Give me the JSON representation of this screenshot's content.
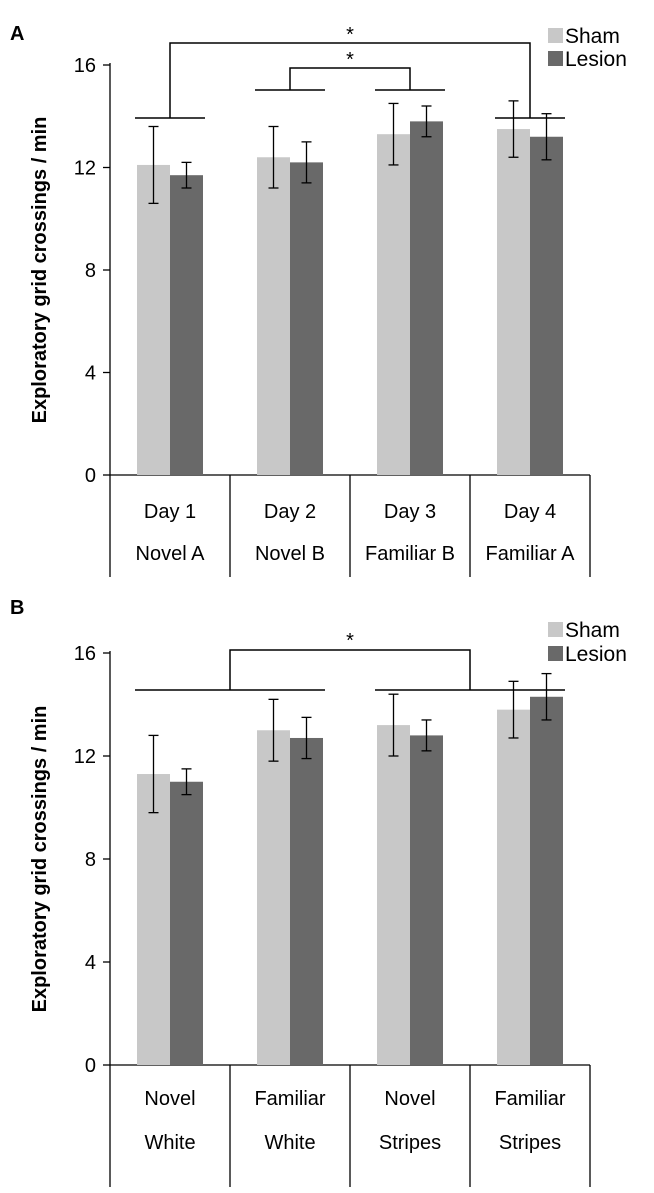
{
  "figure": {
    "background": "#ffffff"
  },
  "chart_data": [
    {
      "panel_label": "A",
      "type": "bar",
      "ylabel": "Exploratory grid crossings / min",
      "ylim": [
        0,
        16
      ],
      "yticks": [
        0,
        4,
        8,
        12,
        16
      ],
      "grid": false,
      "legend_position": "top-right",
      "categories": [
        [
          "Day 1",
          "Novel A"
        ],
        [
          "Day 2",
          "Novel B"
        ],
        [
          "Day 3",
          "Familiar B"
        ],
        [
          "Day 4",
          "Familiar A"
        ]
      ],
      "series": [
        {
          "name": "Sham",
          "color": "#c8c8c8",
          "values": [
            12.1,
            12.4,
            13.3,
            13.5
          ],
          "errors": [
            1.5,
            1.2,
            1.2,
            1.1
          ]
        },
        {
          "name": "Lesion",
          "color": "#696969",
          "values": [
            11.7,
            12.2,
            13.8,
            13.2
          ],
          "errors": [
            0.5,
            0.8,
            0.6,
            0.9
          ]
        }
      ],
      "annotations": [
        {
          "text": "*",
          "type": "significance",
          "left_groups": [
            0
          ],
          "right_groups": [
            3
          ]
        },
        {
          "text": "*",
          "type": "significance",
          "left_groups": [
            1
          ],
          "right_groups": [
            2
          ]
        }
      ]
    },
    {
      "panel_label": "B",
      "type": "bar",
      "ylabel": "Exploratory grid crossings / min",
      "ylim": [
        0,
        16
      ],
      "yticks": [
        0,
        4,
        8,
        12,
        16
      ],
      "grid": false,
      "legend_position": "top-right",
      "categories": [
        [
          "Novel",
          "White"
        ],
        [
          "Familiar",
          "White"
        ],
        [
          "Novel",
          "Stripes"
        ],
        [
          "Familiar",
          "Stripes"
        ]
      ],
      "series": [
        {
          "name": "Sham",
          "color": "#c8c8c8",
          "values": [
            11.3,
            13.0,
            13.2,
            13.8
          ],
          "errors": [
            1.5,
            1.2,
            1.2,
            1.1
          ]
        },
        {
          "name": "Lesion",
          "color": "#696969",
          "values": [
            11.0,
            12.7,
            12.8,
            14.3
          ],
          "errors": [
            0.5,
            0.8,
            0.6,
            0.9
          ]
        }
      ],
      "annotations": [
        {
          "text": "*",
          "type": "significance",
          "left_groups": [
            0,
            1
          ],
          "right_groups": [
            2,
            3
          ]
        }
      ]
    }
  ]
}
